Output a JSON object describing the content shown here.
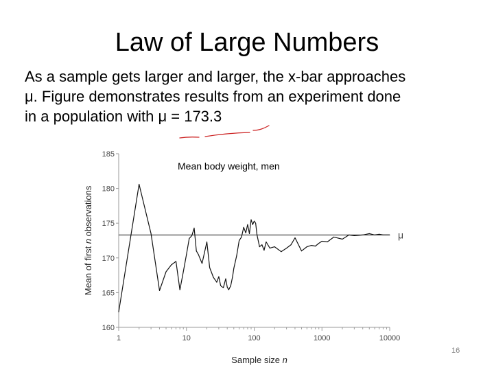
{
  "slide": {
    "title": "Law of Large Numbers",
    "body_lines": [
      "As a sample gets larger and larger, the x-bar approaches",
      "μ. Figure demonstrates results from an experiment done",
      "in a population with μ = 173.3"
    ],
    "slide_number": "16"
  },
  "colors": {
    "line": "#111111",
    "axis": "#9a9a9a",
    "ink": "#cc2222"
  },
  "chart_data": {
    "type": "line",
    "title": "Mean body weight, men",
    "xlabel": "Sample size n",
    "ylabel": "Mean of first n observations",
    "xscale": "log",
    "xlim": [
      1,
      10000
    ],
    "ylim": [
      160,
      185
    ],
    "xticks": [
      1,
      10,
      100,
      1000,
      10000
    ],
    "xtick_labels": [
      "1",
      "10",
      "100",
      "1000",
      "10000"
    ],
    "yticks": [
      160,
      165,
      170,
      175,
      180,
      185
    ],
    "reference_line": {
      "label": "μ",
      "value": 173.3
    },
    "series": [
      {
        "x": [
          1,
          2,
          3,
          4,
          5,
          6,
          7,
          8,
          9,
          10,
          11,
          12,
          13,
          14,
          15,
          17,
          20,
          22,
          25,
          28,
          30,
          32,
          35,
          38,
          40,
          42,
          45,
          48,
          50,
          55,
          60,
          65,
          70,
          75,
          80,
          85,
          90,
          95,
          100,
          105,
          110,
          120,
          130,
          140,
          150,
          170,
          200,
          250,
          300,
          350,
          400,
          450,
          500,
          600,
          700,
          800,
          900,
          1000,
          1200,
          1500,
          2000,
          2500,
          3000,
          4000,
          5000,
          6000,
          7000,
          8000,
          10000
        ],
        "y": [
          162.2,
          180.6,
          173.5,
          165.3,
          168.0,
          169.0,
          169.5,
          165.4,
          168.0,
          170.5,
          172.8,
          173.2,
          174.3,
          171.0,
          170.5,
          169.2,
          172.3,
          168.6,
          167.2,
          166.5,
          167.3,
          166.0,
          165.7,
          167.0,
          165.8,
          165.4,
          166.0,
          167.3,
          168.5,
          170.3,
          172.5,
          173.0,
          174.4,
          173.6,
          174.8,
          173.5,
          175.5,
          174.8,
          175.3,
          175.0,
          173.3,
          171.6,
          171.9,
          171.1,
          172.3,
          171.4,
          171.6,
          170.9,
          171.4,
          171.9,
          172.9,
          171.9,
          171.0,
          171.6,
          171.8,
          171.7,
          172.1,
          172.4,
          172.3,
          173.0,
          172.7,
          173.3,
          173.2,
          173.3,
          173.5,
          173.3,
          173.4,
          173.3,
          173.3
        ]
      }
    ]
  }
}
